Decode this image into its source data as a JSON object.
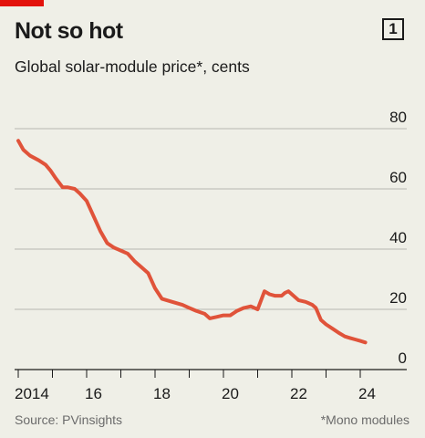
{
  "header": {
    "title": "Not so hot",
    "chart_number": "1",
    "subtitle": "Global solar-module price*, cents"
  },
  "footer": {
    "source": "Source: PVinsights",
    "footnote": "*Mono modules"
  },
  "colors": {
    "accent": "#e3120b",
    "line": "#e0533a",
    "background": "#efefe7",
    "grid": "#b7b7b0"
  },
  "chart_data": {
    "type": "line",
    "title": "Not so hot",
    "subtitle": "Global solar-module price*, cents",
    "ylim": [
      0,
      80
    ],
    "xlim": [
      2014,
      2024.5
    ],
    "yticks": [
      0,
      20,
      40,
      60,
      80
    ],
    "xticks": [
      2014,
      2016,
      2018,
      2020,
      2022,
      2024
    ],
    "xtick_labels": [
      "2014",
      "16",
      "18",
      "20",
      "22",
      "24"
    ],
    "grid": "horizontal",
    "y_axis_position": "right",
    "series": [
      {
        "x": [
          2014.0,
          2014.15,
          2014.35,
          2014.6,
          2014.8,
          2014.95,
          2015.1,
          2015.3,
          2015.45,
          2015.65,
          2015.8,
          2016.0,
          2016.2,
          2016.4,
          2016.6,
          2016.8,
          2017.0,
          2017.2,
          2017.4,
          2017.6,
          2017.8,
          2018.0,
          2018.2,
          2018.5,
          2018.8,
          2019.0,
          2019.2,
          2019.45,
          2019.6,
          2019.8,
          2020.0,
          2020.2,
          2020.4,
          2020.6,
          2020.8,
          2021.0,
          2021.2,
          2021.35,
          2021.5,
          2021.7,
          2021.8,
          2021.9,
          2022.0,
          2022.2,
          2022.4,
          2022.5,
          2022.6,
          2022.7,
          2022.85,
          2023.0,
          2023.2,
          2023.4,
          2023.55,
          2023.7,
          2023.85,
          2024.0,
          2024.15
        ],
        "y": [
          76,
          73,
          71,
          69.5,
          68,
          66,
          63.5,
          60.5,
          60.5,
          60,
          58.5,
          56,
          51,
          46,
          42,
          40.5,
          39.5,
          38.5,
          36,
          34,
          32,
          27,
          23.5,
          22.5,
          21.5,
          20.5,
          19.5,
          18.5,
          17,
          17.5,
          18,
          18,
          19.5,
          20.5,
          21,
          20,
          26,
          25,
          24.5,
          24.5,
          25.5,
          26,
          25,
          23,
          22.5,
          22,
          21.5,
          20.5,
          16.5,
          15,
          13.5,
          12,
          11,
          10.5,
          10,
          9.5,
          9
        ]
      }
    ]
  }
}
